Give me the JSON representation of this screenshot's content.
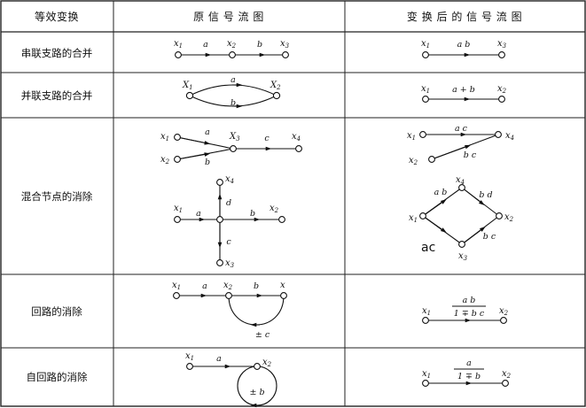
{
  "table": {
    "headers": {
      "col1": "等效变换",
      "col2": "原 信 号 流 图",
      "col3": "变 换 后 的 信 号 流 图"
    },
    "rows": [
      {
        "label": "串联支路的合并",
        "original": {
          "v1": "x",
          "s1": "1",
          "v2": "x",
          "s2": "2",
          "v3": "x",
          "s3": "3",
          "e1": "a",
          "e2": "b"
        },
        "transformed": {
          "v1": "x",
          "s1": "1",
          "v2": "x",
          "s2": "3",
          "e": "a b"
        }
      },
      {
        "label": "并联支路的合并",
        "original": {
          "v1": "X",
          "s1": "1",
          "v2": "X",
          "s2": "2",
          "e1": "a",
          "e2": "b"
        },
        "transformed": {
          "v1": "x",
          "s1": "1",
          "v2": "x",
          "s2": "2",
          "e": "a + b"
        }
      },
      {
        "label": "混合节点的消除",
        "original_a": {
          "v1": "x",
          "s1": "1",
          "v2": "x",
          "s2": "2",
          "v3": "X",
          "s3": "3",
          "v4": "x",
          "s4": "4",
          "e1": "a",
          "e2": "b",
          "e3": "c"
        },
        "original_b": {
          "v1": "x",
          "s1": "1",
          "v2": "x",
          "s2": "2",
          "v3": "x",
          "s3": "3",
          "v4": "x",
          "s4": "4",
          "e1": "a",
          "e2": "b",
          "e3": "c",
          "e4": "d"
        },
        "transformed_a": {
          "v1": "x",
          "s1": "1",
          "v2": "x",
          "s2": "2",
          "v4": "x",
          "s4": "4",
          "e1": "a c",
          "e2": "b c"
        },
        "transformed_b": {
          "v1": "x",
          "s1": "1",
          "v2": "x",
          "s2": "2",
          "v3": "x",
          "s3": "3",
          "v4": "x",
          "s4": "4",
          "e1": "a b",
          "e2": "b d",
          "e3": "b c",
          "e4": "ac"
        }
      },
      {
        "label": "回路的消除",
        "original": {
          "v1": "x",
          "s1": "1",
          "v2": "x",
          "s2": "2",
          "v3": "x",
          "e1": "a",
          "e2": "b",
          "loop": "± c"
        },
        "transformed": {
          "v1": "x",
          "s1": "1",
          "v2": "x",
          "s2": "2",
          "num": "a b",
          "den": "1 ∓ b c"
        }
      },
      {
        "label": "自回路的消除",
        "original": {
          "v1": "x",
          "s1": "1",
          "v2": "x",
          "s2": "2",
          "e": "a",
          "loop": "± b"
        },
        "transformed": {
          "v1": "x",
          "s1": "1",
          "v2": "x",
          "s2": "2",
          "num": "a",
          "den": "1 ∓ b"
        }
      }
    ]
  },
  "colors": {
    "ink": "#111111",
    "grid": "#222222",
    "background": "#ffffff"
  }
}
